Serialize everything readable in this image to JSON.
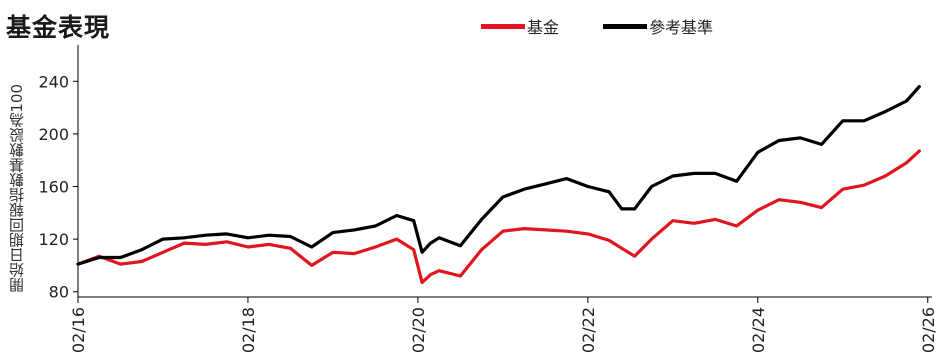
{
  "title": "基金表現",
  "legend": {
    "fund": "基金",
    "benchmark": "參考基準"
  },
  "colors": {
    "fund": "#e0151d",
    "benchmark": "#000000",
    "axis": "#000000"
  },
  "chart_data": {
    "type": "line",
    "title": "基金表現",
    "xlabel": "",
    "ylabel": "開始日期回報指數基數設為100",
    "xlim": [
      2016.0,
      2026.05
    ],
    "ylim": [
      76,
      260
    ],
    "x_ticks": [
      "02/16",
      "02/18",
      "02/20",
      "02/22",
      "02/24",
      "02/26"
    ],
    "y_ticks": [
      80,
      120,
      160,
      200,
      240
    ],
    "grid": false,
    "legend_position": "top",
    "x": [
      2016.0,
      2016.25,
      2016.5,
      2016.75,
      2017.0,
      2017.25,
      2017.5,
      2017.75,
      2018.0,
      2018.25,
      2018.5,
      2018.75,
      2019.0,
      2019.25,
      2019.5,
      2019.75,
      2019.95,
      2020.05,
      2020.15,
      2020.25,
      2020.5,
      2020.75,
      2021.0,
      2021.25,
      2021.5,
      2021.75,
      2022.0,
      2022.25,
      2022.4,
      2022.55,
      2022.75,
      2023.0,
      2023.25,
      2023.5,
      2023.75,
      2024.0,
      2024.25,
      2024.5,
      2024.75,
      2025.0,
      2025.25,
      2025.5,
      2025.75,
      2025.9
    ],
    "series": [
      {
        "name": "基金",
        "values": [
          101,
          107,
          101,
          103,
          110,
          117,
          116,
          118,
          114,
          116,
          113,
          100,
          110,
          109,
          114,
          120,
          112,
          87,
          93,
          96,
          92,
          112,
          126,
          128,
          127,
          126,
          124,
          119,
          113,
          107,
          120,
          134,
          132,
          135,
          130,
          142,
          150,
          148,
          144,
          158,
          161,
          168,
          178,
          187
        ]
      },
      {
        "name": "參考基準",
        "values": [
          101,
          106,
          106,
          112,
          120,
          121,
          123,
          124,
          121,
          123,
          122,
          114,
          125,
          127,
          130,
          138,
          134,
          110,
          117,
          121,
          115,
          135,
          152,
          158,
          162,
          166,
          160,
          156,
          143,
          143,
          160,
          168,
          170,
          170,
          164,
          186,
          195,
          197,
          192,
          210,
          210,
          217,
          225,
          236
        ]
      }
    ]
  }
}
